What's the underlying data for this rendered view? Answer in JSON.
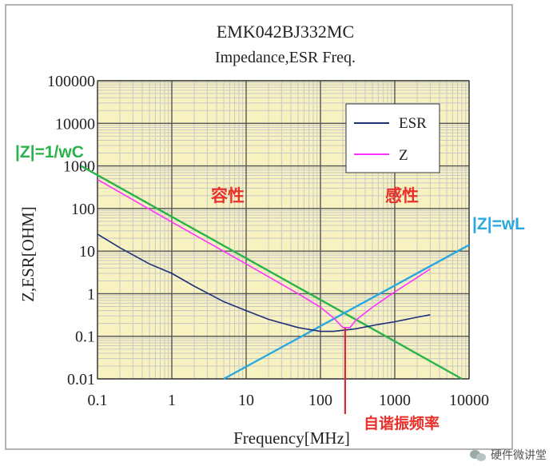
{
  "chart_data": {
    "type": "line",
    "title": "EMK042BJ332MC",
    "subtitle": "Impedance,ESR Freq.",
    "xlabel": "Frequency[MHz]",
    "ylabel": "Z,ESR[OHM]",
    "xscale": "log",
    "yscale": "log",
    "xlim": [
      0.1,
      10000
    ],
    "ylim": [
      0.01,
      100000
    ],
    "grid": true,
    "xticks": [
      "0.1",
      "1",
      "10",
      "100",
      "1000",
      "10000"
    ],
    "yticks": [
      "0.01",
      "0.1",
      "1",
      "10",
      "100",
      "1000",
      "10000",
      "100000"
    ],
    "legend_position": "top-right",
    "series": [
      {
        "name": "ESR",
        "color": "#1f2f7a",
        "x": [
          0.1,
          0.2,
          0.5,
          1,
          2,
          5,
          10,
          20,
          50,
          100,
          150,
          300,
          600,
          1000,
          2000,
          3000
        ],
        "y": [
          25,
          12,
          5,
          3,
          1.5,
          0.65,
          0.4,
          0.25,
          0.16,
          0.13,
          0.13,
          0.15,
          0.19,
          0.22,
          0.28,
          0.32
        ]
      },
      {
        "name": "Z",
        "color": "#ff33ff",
        "x": [
          0.1,
          1,
          10,
          50,
          100,
          150,
          200,
          250,
          300,
          500,
          1000,
          2000,
          3000
        ],
        "y": [
          480,
          48,
          5,
          1.0,
          0.48,
          0.27,
          0.16,
          0.16,
          0.24,
          0.48,
          1.1,
          2.4,
          3.8
        ]
      }
    ],
    "annotations": {
      "capacitive_line_label": "|Z|=1/wC",
      "inductive_line_label": "|Z|=wL",
      "capacitive_region_label": "容性",
      "inductive_region_label": "感性",
      "resonance_label": "自谐振频率",
      "capacitive_line_color": "#2ab34a",
      "inductive_line_color": "#2aa7e0",
      "region_label_color": "#e8312a",
      "resonance_line_color": "#e0243a",
      "capacitive_line": {
        "x": [
          0.06,
          8000
        ],
        "y": [
          1000,
          0.01
        ]
      },
      "inductive_line": {
        "x": [
          5,
          10000
        ],
        "y": [
          0.01,
          14
        ]
      },
      "resonance_frequency": 215
    },
    "colors": {
      "plot_background": "#f7f2c0",
      "major_grid": "#555555",
      "minor_grid": "#c8c8c8",
      "frame": "#9a9a9a"
    }
  },
  "watermark": {
    "text": "硬件微讲堂"
  }
}
